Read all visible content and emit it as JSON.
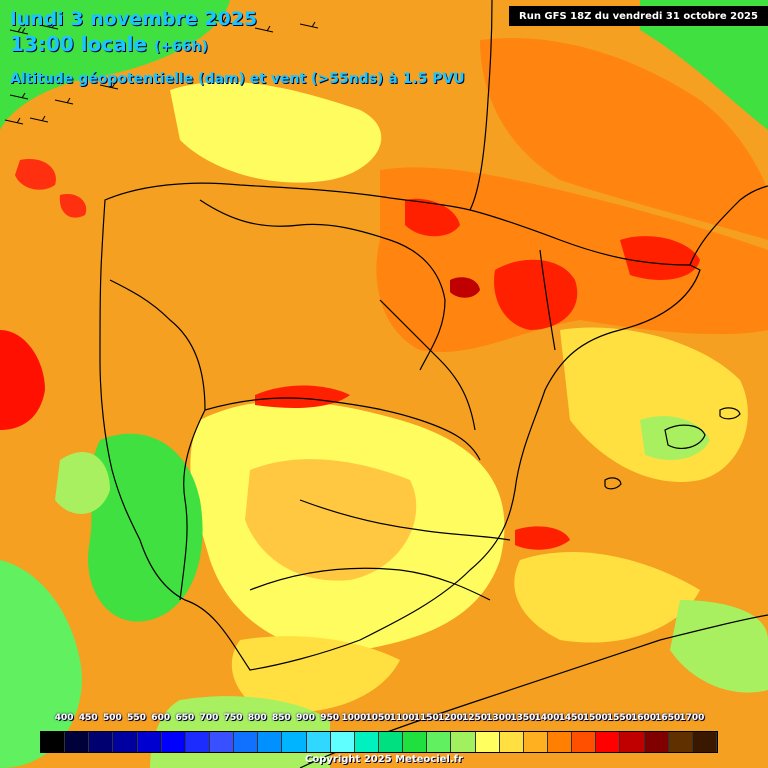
{
  "header": {
    "date_line": "lundi 3 novembre 2025",
    "time_main": "13:00 locale",
    "time_lead": "(+66h)",
    "field_line": "Altitude géopotentielle (dam) et vent (>55nds) à 1.5 PVU",
    "run_label": "Run GFS 18Z du vendredi 31 octobre 2025"
  },
  "legend": {
    "labels": [
      "400",
      "450",
      "500",
      "550",
      "600",
      "650",
      "700",
      "750",
      "800",
      "850",
      "900",
      "950",
      "1000",
      "1050",
      "1100",
      "1150",
      "1200",
      "1250",
      "1300",
      "1350",
      "1400",
      "1450",
      "1500",
      "1550",
      "1600",
      "1650",
      "1700"
    ],
    "colors": [
      "#000000",
      "#00003a",
      "#000070",
      "#0000a0",
      "#0000d0",
      "#0000ff",
      "#1c2cff",
      "#3850ff",
      "#1070ff",
      "#0090ff",
      "#00b4ff",
      "#30d8ff",
      "#60ffff",
      "#00f0c0",
      "#00e080",
      "#20e040",
      "#60f060",
      "#a0f060",
      "#ffff60",
      "#ffe040",
      "#ffb020",
      "#ff8000",
      "#ff5000",
      "#ff0000",
      "#c00000",
      "#800000",
      "#603000",
      "#3a1800"
    ]
  },
  "footer": {
    "copyright": "Copyright 2025 Meteociel.fr"
  },
  "map_colors": {
    "land_base": "#f5a020",
    "green": "#40e040",
    "light_green": "#a8f060",
    "yellow": "#fffc60",
    "light_orange": "#ffc840",
    "orange": "#ff8410",
    "red_orange": "#ff5010",
    "red": "#ff0000",
    "dark_red": "#c00000",
    "border": "#000000"
  }
}
